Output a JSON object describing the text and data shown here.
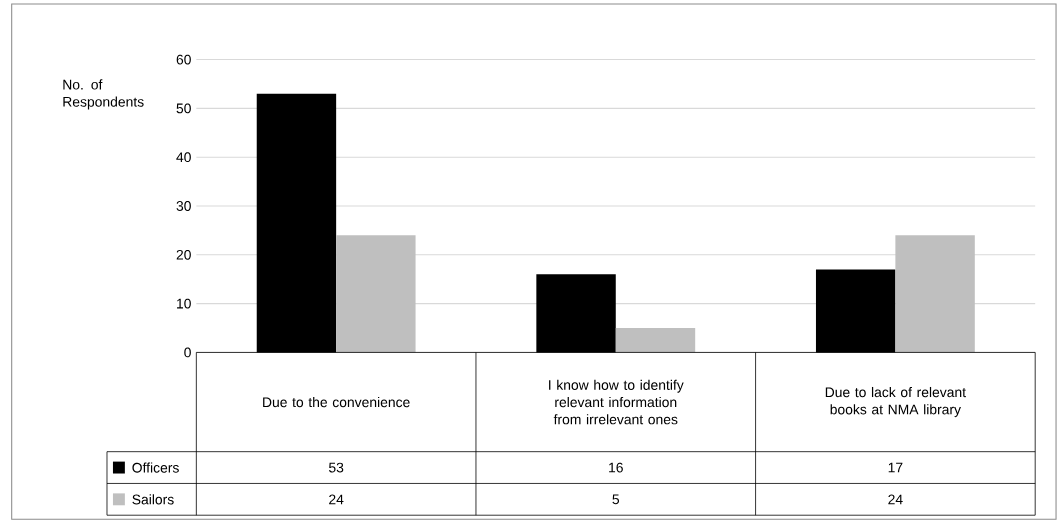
{
  "chart_data": {
    "type": "bar",
    "ylabel": "No. of Respondents",
    "categories": [
      "Due to the convenience",
      "I know how to identify relevant information from irrelevant ones",
      "Due to lack of relevant books at NMA library"
    ],
    "series": [
      {
        "name": "Officers",
        "color": "#000000",
        "values": [
          53,
          16,
          17
        ]
      },
      {
        "name": "Sailors",
        "color": "#bfbfbf",
        "values": [
          24,
          5,
          24
        ]
      }
    ],
    "ylim": [
      0,
      60
    ],
    "yticks": [
      0,
      10,
      20,
      30,
      40,
      50,
      60
    ],
    "grid": "y",
    "legend": "bottom",
    "data_labels": true
  }
}
